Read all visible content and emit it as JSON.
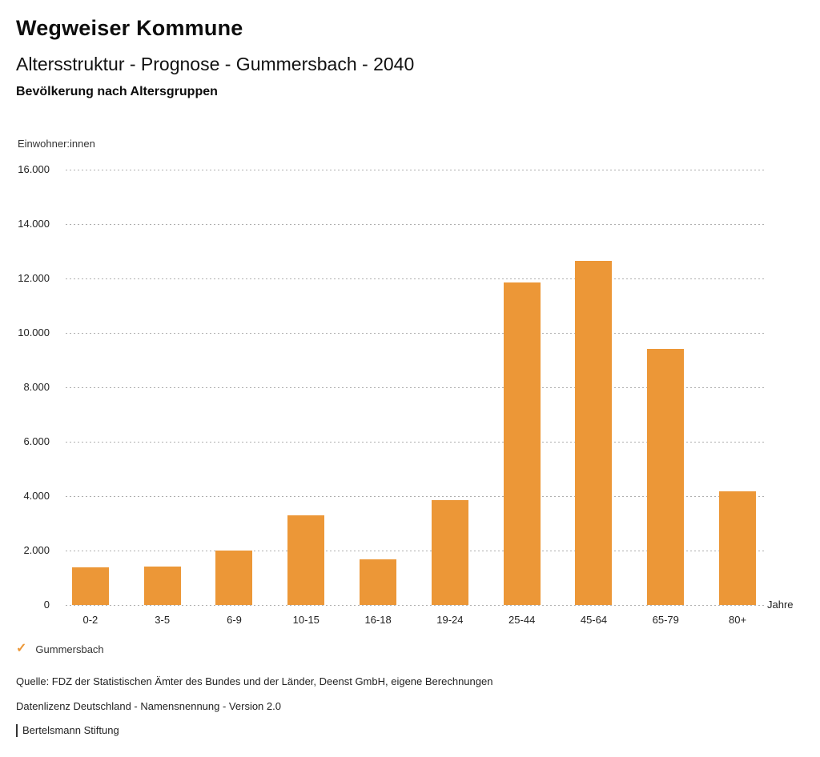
{
  "header": {
    "title": "Wegweiser Kommune",
    "subtitle": "Altersstruktur - Prognose - Gummersbach - 2040",
    "section_title": "Bevölkerung nach Altersgruppen"
  },
  "chart_data": {
    "type": "bar",
    "title": "Bevölkerung nach Altersgruppen",
    "categories": [
      "0-2",
      "3-5",
      "6-9",
      "10-15",
      "16-18",
      "19-24",
      "25-44",
      "45-64",
      "65-79",
      "80+"
    ],
    "series": [
      {
        "name": "Gummersbach",
        "values": [
          1380,
          1420,
          2010,
          3290,
          1690,
          3850,
          11860,
          12660,
          9410,
          4190
        ]
      }
    ],
    "xlabel": "Jahre",
    "ylabel": "Einwohner:innen",
    "ylim": [
      0,
      16000
    ],
    "ytick_step": 2000,
    "ytick_labels": [
      "0",
      "2.000",
      "4.000",
      "6.000",
      "8.000",
      "10.000",
      "12.000",
      "14.000",
      "16.000"
    ],
    "grid": "horizontal-dotted",
    "gridline_color": "#aeaeae",
    "bar_color": "#EC9737",
    "legend_position": "bottom-left"
  },
  "legend": {
    "checkmark_icon": "✓",
    "label": "Gummersbach",
    "color": "#EC9737"
  },
  "footer": {
    "source": "Quelle: FDZ der Statistischen Ämter des Bundes und der Länder, Deenst GmbH, eigene Berechnungen",
    "license": "Datenlizenz Deutschland - Namensnennung - Version 2.0",
    "attribution": "Bertelsmann Stiftung"
  }
}
